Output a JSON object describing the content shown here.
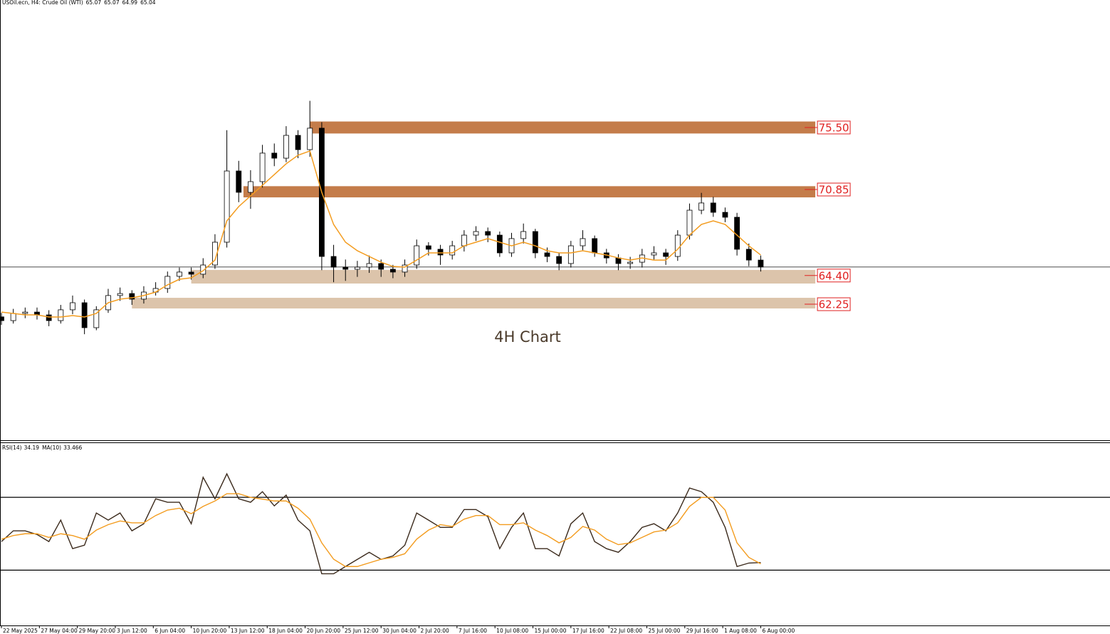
{
  "chart_data": [
    {
      "type": "candlestick",
      "title": "USOil.ecn, H4: Crude Oil (WTI)",
      "last_ohlc": [
        65.07,
        65.07,
        64.99,
        65.04
      ],
      "annotation": "4H Chart",
      "xlim": [
        -0.6,
        467.2
      ],
      "ylim": [
        52.05,
        85.06
      ],
      "x": [
        0,
        5,
        10,
        15,
        20,
        25,
        30,
        35,
        40,
        45,
        50,
        55,
        60,
        65,
        70,
        75,
        80,
        85,
        90,
        95,
        100,
        105,
        110,
        115,
        120,
        125,
        130,
        135,
        140,
        145,
        150,
        155,
        160,
        165,
        170,
        175,
        180,
        185,
        190,
        195,
        200,
        205,
        210,
        215,
        220,
        225,
        230,
        235,
        240,
        245,
        250,
        255,
        260,
        265,
        270,
        275,
        280,
        285,
        290,
        295,
        300,
        305,
        310,
        315,
        320
      ],
      "open": [
        61.3,
        61.02,
        61.56,
        61.66,
        61.45,
        61.02,
        61.83,
        62.36,
        60.49,
        61.83,
        62.9,
        63.05,
        62.63,
        63.16,
        63.43,
        64.34,
        64.66,
        64.5,
        65.19,
        66.9,
        72.24,
        70.64,
        71.44,
        73.58,
        73.2,
        74.91,
        73.84,
        75.45,
        65.83,
        65.03,
        64.87,
        65.03,
        65.3,
        64.87,
        64.66,
        65.19,
        66.63,
        66.37,
        65.94,
        66.63,
        67.43,
        67.7,
        67.43,
        66.1,
        67.17,
        67.7,
        66.1,
        65.83,
        65.3,
        66.63,
        67.17,
        66.1,
        65.72,
        65.3,
        65.4,
        65.94,
        66.1,
        65.83,
        67.43,
        69.3,
        69.84,
        69.14,
        68.77,
        66.37,
        65.56
      ],
      "high": [
        61.6,
        61.9,
        62.0,
        62.0,
        61.8,
        62.2,
        62.9,
        62.6,
        62.1,
        63.4,
        63.5,
        63.3,
        63.6,
        63.9,
        64.7,
        65.0,
        65.0,
        65.7,
        67.5,
        75.3,
        73.0,
        72.3,
        74.2,
        74.3,
        75.6,
        75.3,
        77.5,
        75.9,
        66.7,
        65.6,
        65.5,
        65.9,
        65.6,
        65.2,
        65.6,
        67.1,
        66.9,
        66.7,
        67.0,
        67.8,
        68.1,
        68.0,
        67.7,
        67.6,
        68.3,
        67.9,
        66.5,
        66.1,
        67.0,
        67.8,
        67.4,
        66.4,
        66.0,
        65.8,
        66.4,
        66.6,
        66.4,
        67.8,
        69.8,
        70.6,
        70.3,
        69.5,
        69.1,
        66.8,
        65.9
      ],
      "low": [
        60.7,
        60.8,
        61.2,
        61.1,
        60.6,
        60.8,
        61.5,
        60.0,
        60.3,
        61.6,
        62.5,
        62.2,
        62.3,
        62.9,
        63.1,
        64.0,
        64.1,
        64.2,
        64.9,
        66.5,
        69.9,
        69.4,
        71.0,
        72.6,
        72.9,
        73.2,
        73.3,
        64.8,
        63.9,
        64.0,
        64.3,
        64.6,
        64.3,
        64.2,
        64.3,
        64.9,
        65.9,
        65.2,
        65.6,
        66.2,
        67.0,
        66.9,
        65.8,
        65.8,
        66.8,
        65.7,
        65.4,
        64.8,
        65.0,
        66.3,
        65.8,
        65.3,
        64.8,
        64.9,
        65.0,
        65.6,
        65.2,
        65.5,
        67.1,
        69.0,
        68.8,
        68.4,
        65.9,
        65.1,
        64.7
      ],
      "close": [
        61.02,
        61.56,
        61.66,
        61.45,
        61.02,
        61.83,
        62.36,
        60.49,
        61.83,
        62.9,
        63.05,
        62.63,
        63.16,
        63.43,
        64.34,
        64.66,
        64.5,
        65.19,
        66.9,
        72.24,
        70.64,
        71.44,
        73.58,
        73.2,
        74.91,
        73.84,
        75.45,
        65.83,
        65.03,
        64.87,
        65.03,
        65.3,
        64.87,
        64.66,
        65.19,
        66.63,
        66.37,
        65.94,
        66.63,
        67.43,
        67.7,
        67.43,
        66.1,
        67.17,
        67.7,
        66.1,
        65.83,
        65.3,
        66.63,
        67.17,
        66.1,
        65.72,
        65.3,
        65.4,
        65.94,
        66.1,
        65.83,
        67.43,
        69.3,
        69.84,
        69.14,
        68.77,
        66.37,
        65.56,
        65.04
      ],
      "ma": {
        "color": "#f39c1f",
        "values": [
          61.66,
          61.56,
          61.45,
          61.45,
          61.29,
          61.29,
          61.4,
          61.29,
          61.56,
          62.36,
          62.63,
          62.73,
          62.9,
          63.16,
          63.7,
          64.12,
          64.23,
          64.76,
          65.56,
          68.5,
          69.57,
          70.37,
          71.17,
          71.97,
          72.78,
          73.42,
          73.74,
          70.64,
          68.23,
          66.9,
          66.26,
          65.83,
          65.4,
          65.08,
          65.03,
          65.56,
          66.1,
          66.1,
          66.1,
          66.63,
          66.9,
          67.17,
          66.9,
          66.63,
          66.9,
          66.63,
          66.26,
          66.1,
          66.1,
          66.26,
          66.1,
          65.94,
          65.72,
          65.56,
          65.72,
          65.56,
          65.56,
          66.37,
          67.43,
          68.23,
          68.5,
          68.23,
          67.43,
          66.63,
          65.94
        ]
      },
      "current_price": 65.04,
      "zones": [
        {
          "value": 75.5,
          "label": "75.50",
          "low": 75.05,
          "high": 75.95,
          "from": 130,
          "to": 343,
          "color": "#c47c4a"
        },
        {
          "value": 70.85,
          "label": "70.85",
          "low": 70.26,
          "high": 71.1,
          "from": 102,
          "to": 343,
          "color": "#c47c4a"
        },
        {
          "value": 64.4,
          "label": "64.40",
          "low": 63.8,
          "high": 64.82,
          "from": 80,
          "to": 343,
          "color": "#dcc4ab"
        },
        {
          "value": 62.25,
          "label": "62.25",
          "low": 61.93,
          "high": 62.73,
          "from": 55,
          "to": 343,
          "color": "#dcc4ab"
        }
      ]
    },
    {
      "type": "rsi",
      "xlim": [
        -0.6,
        467.2
      ],
      "ylim": [
        0,
        100
      ],
      "levels": [
        30,
        70
      ],
      "x": [
        0,
        5,
        10,
        15,
        20,
        25,
        30,
        35,
        40,
        45,
        50,
        55,
        60,
        65,
        70,
        75,
        80,
        85,
        90,
        95,
        100,
        105,
        110,
        115,
        120,
        125,
        130,
        135,
        140,
        145,
        150,
        155,
        160,
        165,
        170,
        175,
        180,
        185,
        190,
        195,
        200,
        205,
        210,
        215,
        220,
        225,
        230,
        235,
        240,
        245,
        250,
        255,
        260,
        265,
        270,
        275,
        280,
        285,
        290,
        295,
        300,
        305,
        310,
        315,
        320
      ],
      "series": [
        {
          "name": "RSI(14)",
          "last": 34.19,
          "color": "#3b2a1c",
          "values": [
            45.7,
            51.6,
            51.6,
            49.6,
            45.7,
            57.5,
            41.8,
            43.7,
            61.4,
            57.5,
            61.4,
            51.6,
            55.5,
            69.2,
            67.3,
            67.3,
            55.5,
            81,
            69.2,
            82.9,
            69.2,
            67.3,
            73.1,
            65.3,
            71.2,
            57.5,
            51.6,
            28,
            28,
            32,
            35.9,
            39.8,
            35.9,
            37.8,
            43.7,
            61.4,
            57.5,
            53.5,
            53.5,
            63.3,
            63.3,
            59.4,
            41.8,
            53.5,
            61.4,
            41.8,
            41.8,
            37.8,
            55.5,
            61.4,
            45.7,
            41.8,
            39.8,
            45.7,
            53.5,
            55.5,
            51.6,
            61.4,
            75.1,
            73.1,
            67.3,
            53.5,
            32,
            33.9,
            34.19
          ]
        },
        {
          "name": "MA(10)",
          "last": 33.466,
          "color": "#f39c1f",
          "values": [
            47,
            49,
            50,
            50,
            48,
            50,
            49,
            47,
            52,
            55,
            57,
            56,
            56,
            60,
            63,
            64,
            61,
            65,
            68,
            72,
            72,
            70,
            69,
            68,
            68,
            64,
            58,
            45,
            36,
            32,
            32,
            34,
            36,
            37,
            39,
            47,
            52,
            55,
            54,
            58,
            60,
            60,
            55,
            55,
            56,
            52,
            49,
            45,
            48,
            54,
            52,
            47,
            44,
            45,
            48,
            51,
            52,
            56,
            65,
            70,
            70,
            63,
            45,
            37,
            33.466
          ]
        }
      ],
      "xticks": [
        {
          "value": 0,
          "label": "22 May 2025"
        },
        {
          "value": 16,
          "label": "27 May 04:00"
        },
        {
          "value": 32,
          "label": "29 May 20:00"
        },
        {
          "value": 48,
          "label": "3 Jun 12:00"
        },
        {
          "value": 64,
          "label": "6 Jun 04:00"
        },
        {
          "value": 80,
          "label": "10 Jun 20:00"
        },
        {
          "value": 96,
          "label": "13 Jun 12:00"
        },
        {
          "value": 112,
          "label": "18 Jun 04:00"
        },
        {
          "value": 128,
          "label": "20 Jun 20:00"
        },
        {
          "value": 144,
          "label": "25 Jun 12:00"
        },
        {
          "value": 160,
          "label": "30 Jun 04:00"
        },
        {
          "value": 176,
          "label": "2 Jul 20:00"
        },
        {
          "value": 192,
          "label": "7 Jul 16:00"
        },
        {
          "value": 208,
          "label": "10 Jul 08:00"
        },
        {
          "value": 224,
          "label": "15 Jul 00:00"
        },
        {
          "value": 240,
          "label": "17 Jul 16:00"
        },
        {
          "value": 256,
          "label": "22 Jul 08:00"
        },
        {
          "value": 272,
          "label": "25 Jul 00:00"
        },
        {
          "value": 288,
          "label": "29 Jul 16:00"
        },
        {
          "value": 304,
          "label": "1 Aug 08:00"
        },
        {
          "value": 320,
          "label": "6 Aug 00:00"
        }
      ]
    }
  ]
}
